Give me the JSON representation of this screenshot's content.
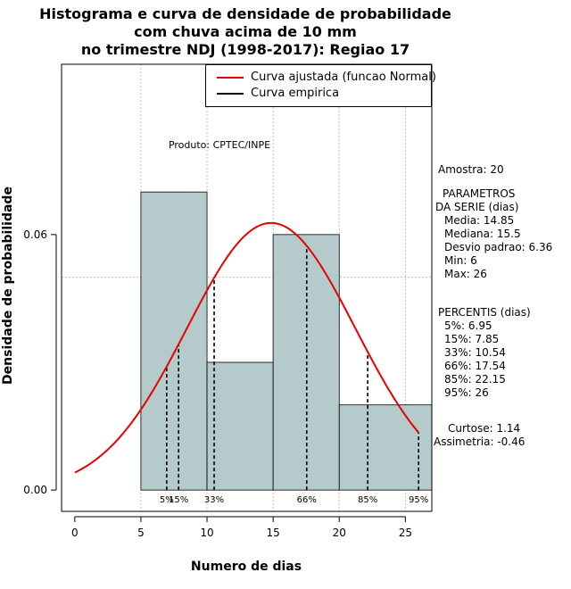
{
  "chart_data": {
    "type": "bar",
    "title_lines": [
      "Histograma e curva de densidade de probabilidade",
      "com chuva acima de 10 mm",
      "no trimestre NDJ (1998-2017): Regiao 17"
    ],
    "xlabel": "Numero de dias",
    "ylabel": "Densidade de probabilidade",
    "xlim": [
      -1,
      27
    ],
    "ylim": [
      -0.005,
      0.1
    ],
    "x_ticks": [
      0,
      5,
      10,
      15,
      20,
      25
    ],
    "x_tick_labels": [
      "0",
      "5",
      "10",
      "15",
      "20",
      "25"
    ],
    "y_ticks": [
      0.0,
      0.06
    ],
    "y_tick_labels": [
      "0.00",
      "0.06"
    ],
    "grid": true,
    "grid_x": [
      5,
      10,
      15,
      20,
      25
    ],
    "grid_y": [
      0.05,
      0.1
    ],
    "bins": [
      {
        "x0": 5,
        "x1": 10,
        "density": 0.07
      },
      {
        "x0": 10,
        "x1": 15,
        "density": 0.03
      },
      {
        "x0": 15,
        "x1": 20,
        "density": 0.06
      },
      {
        "x0": 20,
        "x1": 27,
        "density": 0.02
      }
    ],
    "bar_color": "#b5cbcb",
    "normal_curve": {
      "mean": 14.85,
      "sd": 6.36,
      "x_range": [
        0,
        26
      ],
      "color": "#e60000"
    },
    "percentile_markers": [
      {
        "label": "5%",
        "x": 6.95
      },
      {
        "label": "15%",
        "x": 7.85
      },
      {
        "label": "33%",
        "x": 10.54
      },
      {
        "label": "66%",
        "x": 17.54
      },
      {
        "label": "85%",
        "x": 22.15
      },
      {
        "label": "95%",
        "x": 26
      }
    ],
    "legend": {
      "position": "top-right",
      "entries": [
        {
          "label": "Curva ajustada (funcao Normal)",
          "color": "#e60000"
        },
        {
          "label": "Curva empirica",
          "color": "#000000"
        }
      ]
    },
    "annotation": "Produto: CPTEC/INPE"
  },
  "stats": {
    "sample": "Amostra: 20",
    "params_title_1": "PARAMETROS",
    "params_title_2": "DA SERIE (dias)",
    "media": "Media: 14.85",
    "mediana": "Mediana: 15.5",
    "desvio": "Desvio padrao: 6.36",
    "min": "Min: 6",
    "max": "Max: 26",
    "percentis_title": "PERCENTIS (dias)",
    "p5": "5%: 6.95",
    "p15": "15%: 7.85",
    "p33": "33%: 10.54",
    "p66": "66%: 17.54",
    "p85": "85%: 22.15",
    "p95": "95%: 26",
    "curtose": "Curtose: 1.14",
    "assimetria": "Assimetria: -0.46"
  }
}
